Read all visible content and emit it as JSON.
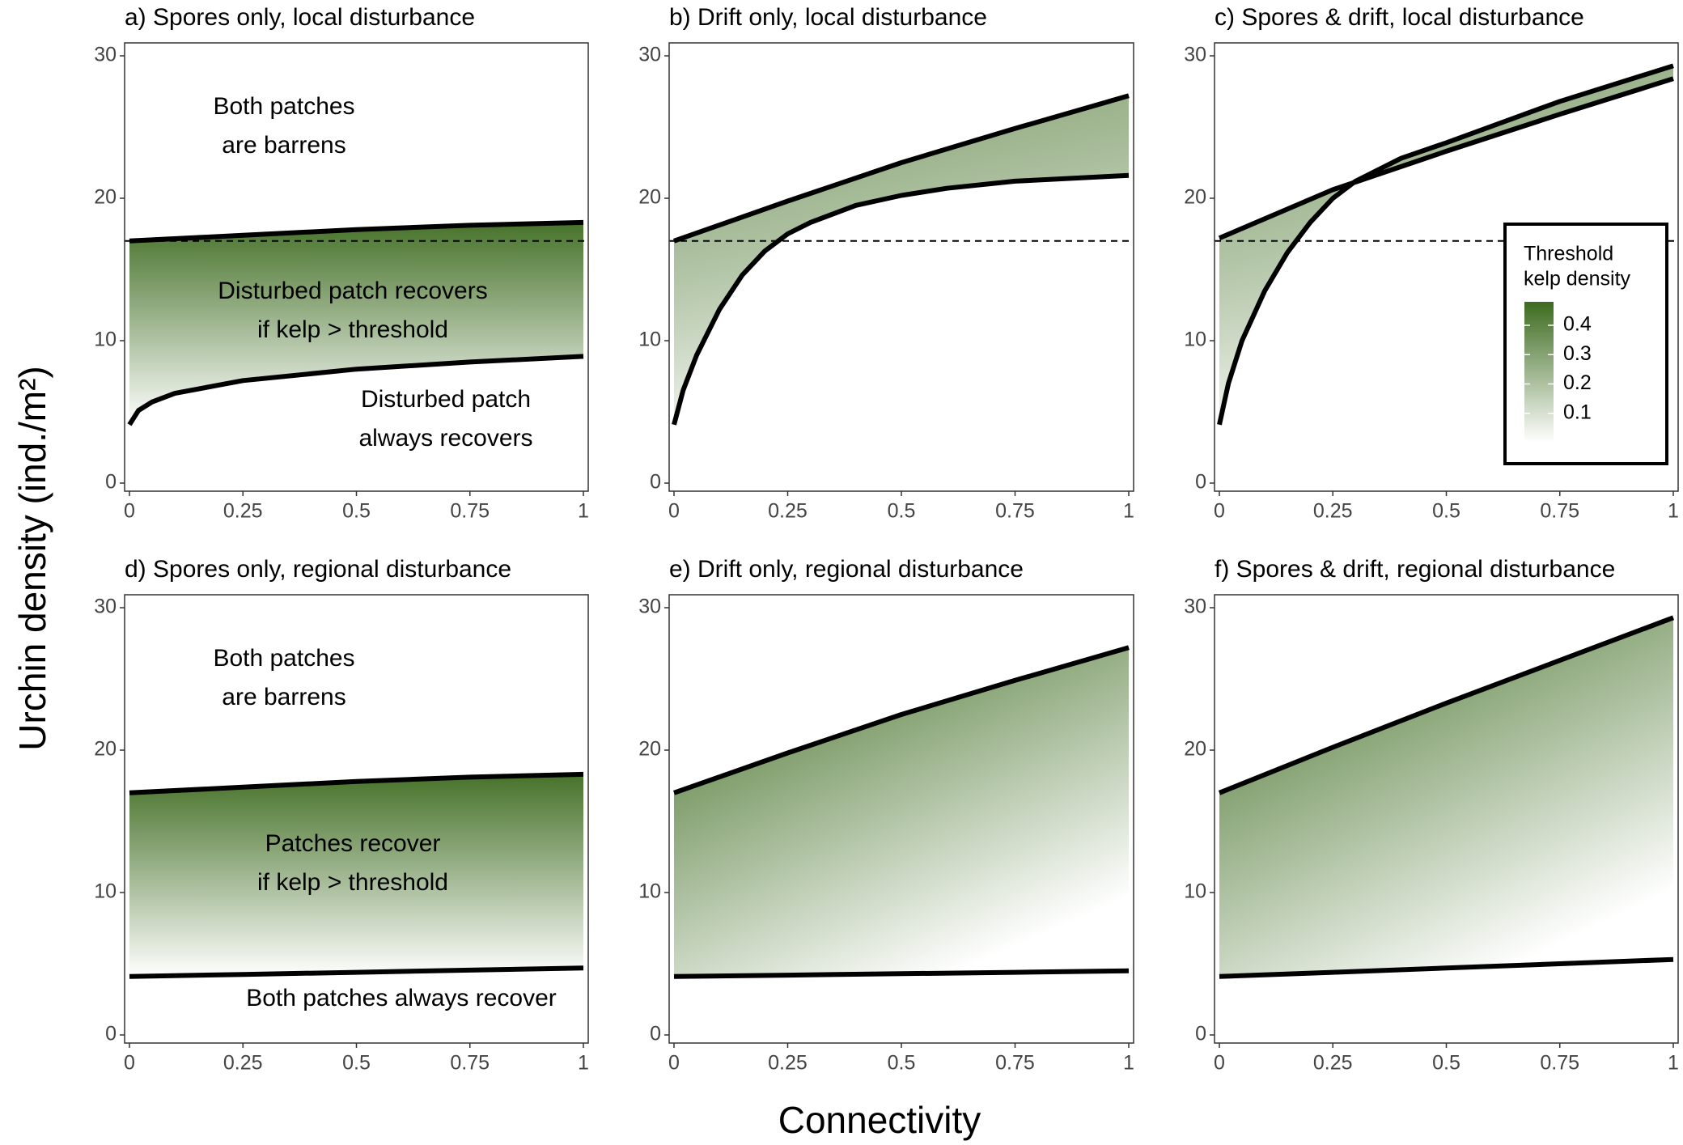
{
  "figure": {
    "ylabel": "Urchin density (ind./m²)",
    "xlabel": "Connectivity"
  },
  "chart_data": [
    {
      "type": "line",
      "title": "a) Spores only, local disturbance",
      "xlim": [
        0,
        1
      ],
      "ylim": [
        0,
        30
      ],
      "xticks": [
        0,
        0.25,
        0.5,
        0.75,
        1
      ],
      "yticks": [
        0,
        10,
        20,
        30
      ],
      "hline": 17,
      "series": [
        {
          "color": "#000000",
          "x": [
            0,
            0.25,
            0.5,
            0.75,
            1
          ],
          "values": [
            17.0,
            17.4,
            17.8,
            18.1,
            18.3
          ]
        },
        {
          "color": "#000000",
          "x": [
            0,
            0.02,
            0.05,
            0.1,
            0.25,
            0.5,
            0.75,
            1
          ],
          "values": [
            4.1,
            5.1,
            5.7,
            6.3,
            7.2,
            8.0,
            8.5,
            8.9
          ]
        }
      ],
      "annotations": [
        [
          "Both patches",
          "are barrens"
        ],
        [
          "Disturbed patch recovers",
          "if kelp > threshold"
        ],
        [
          "Disturbed patch",
          "always recovers"
        ]
      ]
    },
    {
      "type": "line",
      "title": "b) Drift only, local disturbance",
      "xlim": [
        0,
        1
      ],
      "ylim": [
        0,
        30
      ],
      "xticks": [
        0,
        0.25,
        0.5,
        0.75,
        1
      ],
      "yticks": [
        0,
        10,
        20,
        30
      ],
      "hline": 17,
      "series": [
        {
          "color": "#000000",
          "x": [
            0,
            0.25,
            0.5,
            0.75,
            1
          ],
          "values": [
            17.0,
            19.8,
            22.5,
            24.9,
            27.2
          ]
        },
        {
          "color": "#000000",
          "x": [
            0,
            0.02,
            0.05,
            0.1,
            0.15,
            0.2,
            0.25,
            0.3,
            0.4,
            0.5,
            0.6,
            0.75,
            1
          ],
          "values": [
            4.1,
            6.5,
            9.0,
            12.2,
            14.6,
            16.3,
            17.5,
            18.3,
            19.5,
            20.2,
            20.7,
            21.2,
            21.6
          ]
        }
      ]
    },
    {
      "type": "line",
      "title": "c) Spores & drift, local disturbance",
      "xlim": [
        0,
        1
      ],
      "ylim": [
        0,
        30
      ],
      "xticks": [
        0,
        0.25,
        0.5,
        0.75,
        1
      ],
      "yticks": [
        0,
        10,
        20,
        30
      ],
      "hline": 17,
      "series": [
        {
          "color": "#000000",
          "x": [
            0,
            0.25,
            0.5,
            0.75,
            1
          ],
          "values": [
            17.2,
            20.6,
            23.3,
            25.9,
            28.4
          ]
        },
        {
          "color": "#000000",
          "x": [
            0,
            0.02,
            0.05,
            0.1,
            0.15,
            0.2,
            0.25,
            0.3,
            0.4,
            0.5,
            0.75,
            1
          ],
          "values": [
            4.1,
            7.0,
            10.0,
            13.5,
            16.2,
            18.3,
            20.0,
            21.2,
            22.8,
            23.9,
            26.8,
            29.3
          ]
        }
      ],
      "colorbar": {
        "title": [
          "Threshold",
          "kelp density"
        ],
        "lim": [
          0,
          0.48
        ],
        "ticks": [
          0.1,
          0.2,
          0.3,
          0.4
        ],
        "colors": [
          "#ffffff",
          "#3d6b1f"
        ]
      }
    },
    {
      "type": "line",
      "title": "d) Spores only, regional disturbance",
      "xlim": [
        0,
        1
      ],
      "ylim": [
        0,
        30
      ],
      "xticks": [
        0,
        0.25,
        0.5,
        0.75,
        1
      ],
      "yticks": [
        0,
        10,
        20,
        30
      ],
      "series": [
        {
          "color": "#000000",
          "x": [
            0,
            0.25,
            0.5,
            0.75,
            1
          ],
          "values": [
            17.0,
            17.4,
            17.8,
            18.1,
            18.3
          ]
        },
        {
          "color": "#000000",
          "x": [
            0,
            0.25,
            0.5,
            0.75,
            1
          ],
          "values": [
            4.1,
            4.25,
            4.4,
            4.55,
            4.7
          ]
        }
      ],
      "annotations": [
        [
          "Both patches",
          "are barrens"
        ],
        [
          "Patches recover",
          "if kelp > threshold"
        ],
        [
          "Both patches always recover"
        ]
      ]
    },
    {
      "type": "line",
      "title": "e) Drift only, regional disturbance",
      "xlim": [
        0,
        1
      ],
      "ylim": [
        0,
        30
      ],
      "xticks": [
        0,
        0.25,
        0.5,
        0.75,
        1
      ],
      "yticks": [
        0,
        10,
        20,
        30
      ],
      "series": [
        {
          "color": "#000000",
          "x": [
            0,
            0.25,
            0.5,
            0.75,
            1
          ],
          "values": [
            17.0,
            19.8,
            22.5,
            24.9,
            27.2
          ]
        },
        {
          "color": "#000000",
          "x": [
            0,
            0.25,
            0.5,
            0.75,
            1
          ],
          "values": [
            4.1,
            4.2,
            4.3,
            4.4,
            4.5
          ]
        }
      ]
    },
    {
      "type": "line",
      "title": "f) Spores & drift, regional disturbance",
      "xlim": [
        0,
        1
      ],
      "ylim": [
        0,
        30
      ],
      "xticks": [
        0,
        0.25,
        0.5,
        0.75,
        1
      ],
      "yticks": [
        0,
        10,
        20,
        30
      ],
      "series": [
        {
          "color": "#000000",
          "x": [
            0,
            0.25,
            0.5,
            0.75,
            1
          ],
          "values": [
            17.0,
            20.2,
            23.3,
            26.3,
            29.3
          ]
        },
        {
          "color": "#000000",
          "x": [
            0,
            0.25,
            0.5,
            0.75,
            1
          ],
          "values": [
            4.1,
            4.4,
            4.7,
            5.0,
            5.3
          ]
        }
      ]
    }
  ]
}
